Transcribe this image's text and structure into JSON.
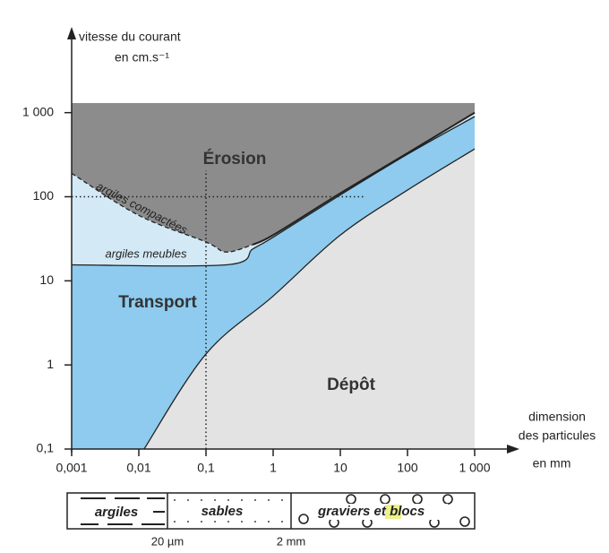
{
  "chart_data": {
    "type": "region",
    "xlim": [
      0.001,
      1000
    ],
    "ylim": [
      0.1,
      1300
    ],
    "log_x": true,
    "log_y": true,
    "xticks": [
      {
        "value": 0.001,
        "label": "0,001"
      },
      {
        "value": 0.01,
        "label": "0,01"
      },
      {
        "value": 0.1,
        "label": "0,1"
      },
      1,
      10,
      100,
      {
        "value": 1000,
        "label": "1 000"
      }
    ],
    "yticks": [
      {
        "value": 0.1,
        "label": "0,1"
      },
      1,
      10,
      100,
      {
        "value": 1000,
        "label": "1 000"
      }
    ],
    "ylabel": [
      "vitesse du courant",
      "en cm.s⁻¹"
    ],
    "xlabel": [
      "dimension",
      "des particules",
      "en mm"
    ],
    "plot_color": "#e3e3e3",
    "series": [
      {
        "x": [
          0.001,
          0.01,
          0.1,
          0.2,
          0.5
        ],
        "values": [
          190,
          60,
          29,
          22,
          27
        ],
        "dashed": true,
        "color": "#8c8c8c"
      },
      {
        "x": [
          0.5,
          1,
          10,
          100,
          1000
        ],
        "values": [
          27,
          35,
          110,
          330,
          1000
        ],
        "dashed": false,
        "color": "#8c8c8c"
      },
      {
        "x": [
          0.001,
          0.2,
          0.5,
          1,
          10,
          100,
          1000
        ],
        "values": [
          15.5,
          15.5,
          24,
          33,
          105,
          320,
          900
        ],
        "dashed": false,
        "color": "#d3e9f6"
      },
      {
        "x": [
          0.012,
          0.1,
          1,
          10,
          100,
          1000
        ],
        "values": [
          0.1,
          1.35,
          6.6,
          35,
          120,
          370
        ],
        "dashed": false,
        "color": "#8ecbee"
      }
    ],
    "regions": {
      "erosion": "Érosion",
      "transport": "Transport",
      "deposit": "Dépôt",
      "compact": "argiles compactées",
      "loose": "argiles meubles"
    },
    "grain_scale": {
      "labels": [
        "argiles",
        "sables",
        "graviers",
        "et",
        "blocs"
      ],
      "boundaries": [
        "20 µm",
        "2 mm"
      ]
    }
  }
}
